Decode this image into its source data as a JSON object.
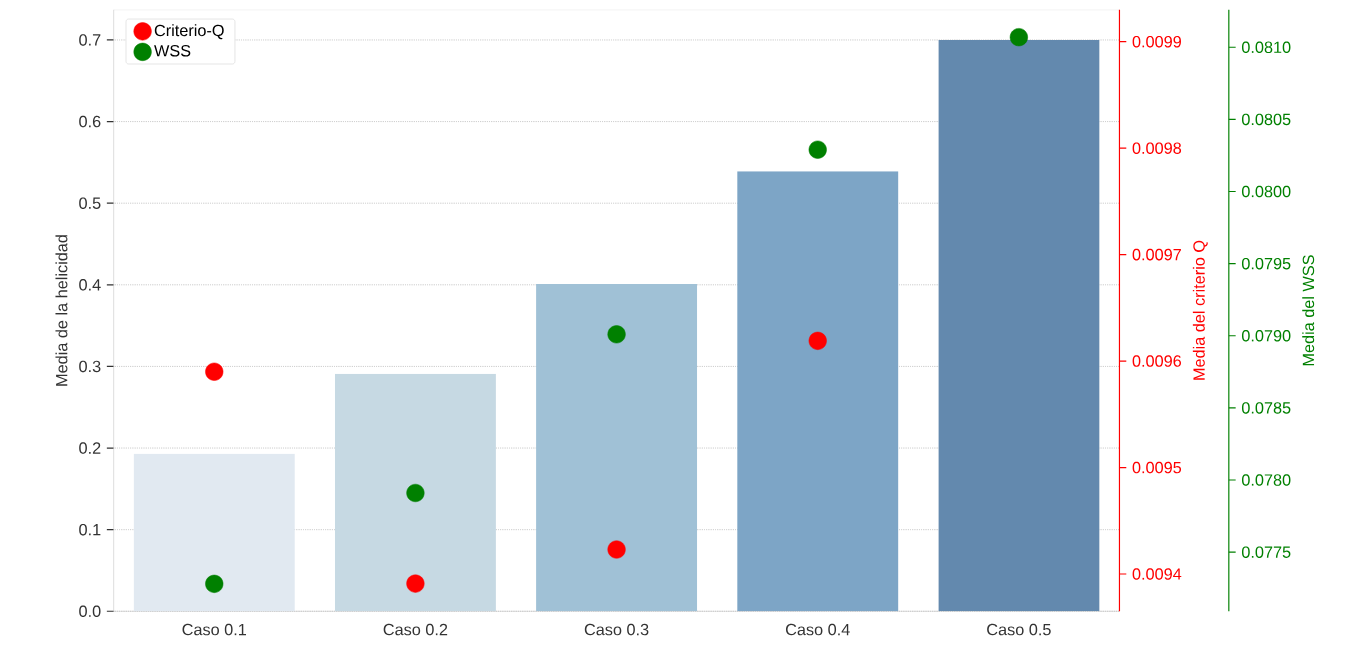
{
  "chart_data": {
    "type": "bar",
    "ylabel": "Media de la helicidad",
    "y2label": "Media del criterio Q",
    "y3label": "Media del WSS",
    "categories": [
      "Caso 0.1",
      "Caso 0.2",
      "Caso 0.3",
      "Caso 0.4",
      "Caso 0.5"
    ],
    "series": [
      {
        "colors": [
          "#e1e9f1",
          "#c6d9e3",
          "#a0c1d6",
          "#7da5c6",
          "#6389ae"
        ],
        "values": [
          0.193,
          0.291,
          0.401,
          0.539,
          0.7
        ]
      },
      {
        "name": "Criterio-Q",
        "type": "scatter",
        "axis": "y2",
        "color": "#ff0000",
        "values": [
          0.00959,
          0.009391,
          0.009423,
          0.009619,
          null
        ]
      },
      {
        "name": "WSS",
        "type": "scatter",
        "axis": "y3",
        "color": "#008000",
        "values": [
          0.07728,
          0.07791,
          0.07901,
          0.08029,
          0.08107
        ]
      }
    ],
    "ylim": [
      0,
      0.737
    ],
    "yticks": [
      {
        "value": 0,
        "label": "0.0"
      },
      0.1,
      0.2,
      0.3,
      0.4,
      0.5,
      0.6,
      0.7
    ],
    "y2lim": [
      0.009365,
      0.00993
    ],
    "y2ticks": [
      0.0094,
      0.0095,
      0.0096,
      0.0097,
      0.0098,
      0.0099
    ],
    "y3lim": [
      0.07709,
      0.08126
    ],
    "y3ticks": [
      0.0775,
      {
        "value": 0.078,
        "label": "0.0780"
      },
      0.0785,
      {
        "value": 0.079,
        "label": "0.0790"
      },
      0.0795,
      {
        "value": 0.08,
        "label": "0.0800"
      },
      0.0805,
      {
        "value": 0.081,
        "label": "0.0810"
      }
    ],
    "grid": "y",
    "legend": "top left"
  }
}
